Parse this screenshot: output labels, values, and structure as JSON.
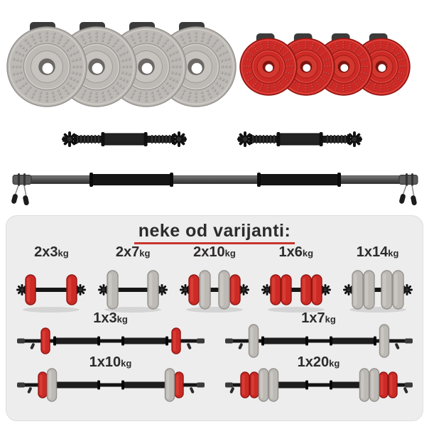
{
  "colors": {
    "red_plate": "#cd2a26",
    "red_dark": "#8e1713",
    "red_light": "#e4544a",
    "gray_plate": "#bdb9b5",
    "gray_dark": "#95918d",
    "gray_light": "#d9d6d2",
    "bar_black": "#1a1a1a",
    "bar_metal": "#555555",
    "panel_bg": "#ededed",
    "label_text": "#2d2b2c",
    "underline_red": "#c9342c"
  },
  "equipment": {
    "gray_plates": {
      "name": "gray-weight-plates",
      "count": 4
    },
    "red_plates": {
      "name": "red-weight-plates",
      "count": 4
    },
    "dumbbell_bars": {
      "name": "dumbbell-handle-bars",
      "count": 2
    },
    "barbell_bar": {
      "name": "barbell-bar",
      "count": 1
    }
  },
  "variants_panel": {
    "title": "neke od varijanti:",
    "rows": [
      {
        "items": [
          {
            "label": "2x3",
            "unit": "kg",
            "type": "dumbbell",
            "side_plates": [
              "red"
            ]
          },
          {
            "label": "2x7",
            "unit": "kg",
            "type": "dumbbell",
            "side_plates": [
              "gray"
            ]
          },
          {
            "label": "2x10",
            "unit": "kg",
            "type": "dumbbell",
            "side_plates": [
              "red",
              "gray"
            ]
          },
          {
            "label": "1x6",
            "unit": "kg",
            "type": "dumbbell",
            "side_plates": [
              "red",
              "red"
            ]
          },
          {
            "label": "1x14",
            "unit": "kg",
            "type": "dumbbell",
            "side_plates": [
              "gray",
              "gray"
            ]
          }
        ]
      },
      {
        "items": [
          {
            "label": "1x3",
            "unit": "kg",
            "type": "barbell",
            "side_plates": [
              "red"
            ]
          },
          {
            "label": "1x7",
            "unit": "kg",
            "type": "barbell",
            "side_plates": [
              "gray"
            ]
          }
        ]
      },
      {
        "items": [
          {
            "label": "1x10",
            "unit": "kg",
            "type": "barbell",
            "side_plates": [
              "red",
              "gray"
            ]
          },
          {
            "label": "1x20",
            "unit": "kg",
            "type": "barbell",
            "side_plates": [
              "red",
              "red",
              "gray",
              "gray"
            ]
          }
        ]
      }
    ]
  }
}
